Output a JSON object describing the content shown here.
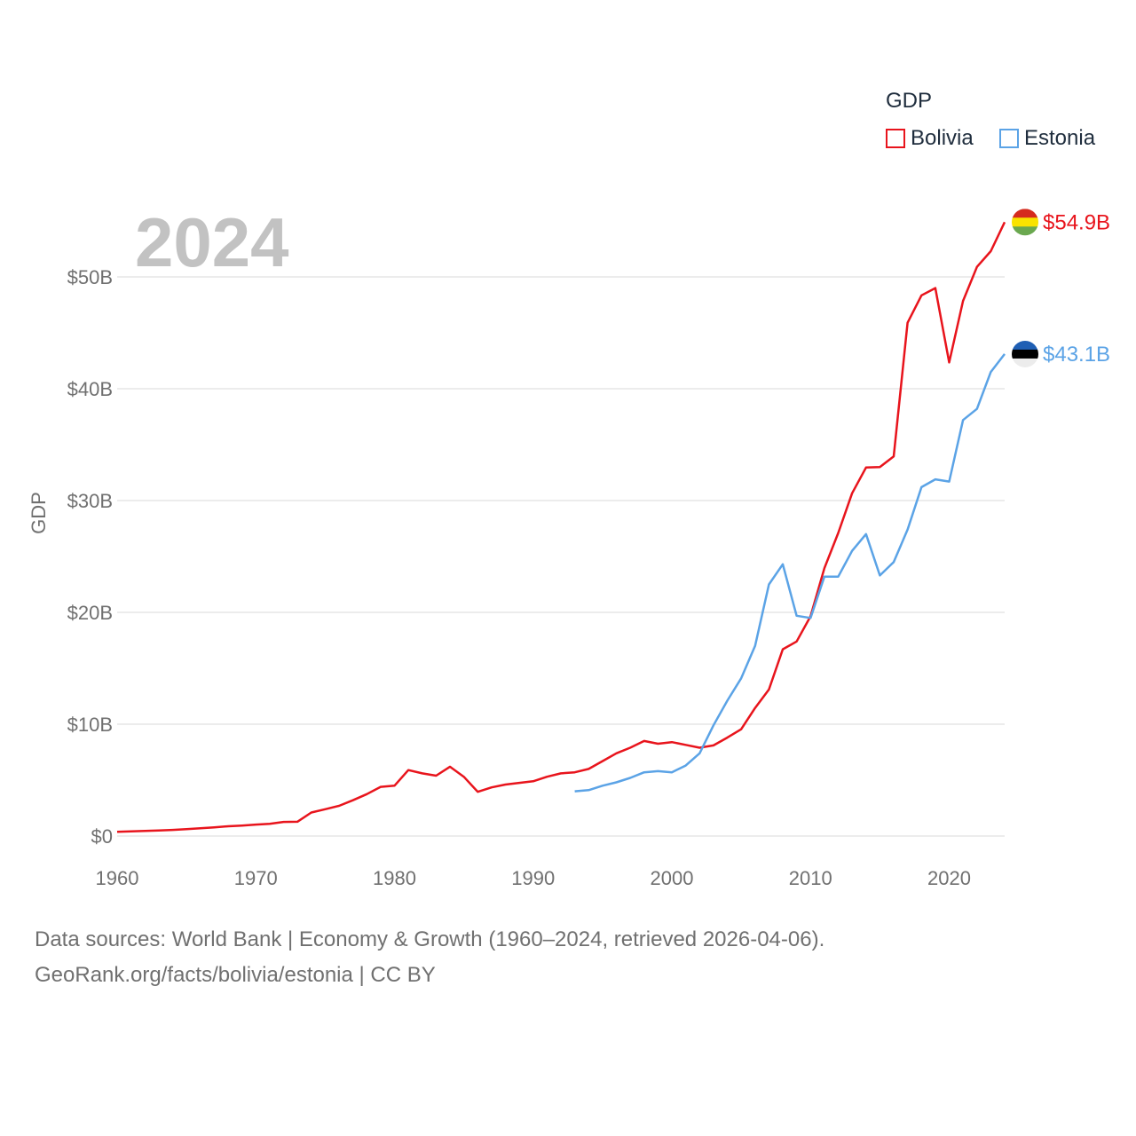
{
  "chart_data": {
    "type": "line",
    "title": "",
    "year_label": "2024",
    "ylabel": "GDP",
    "xlabel": "",
    "xlim": [
      1960,
      2024
    ],
    "ylim": [
      0,
      55
    ],
    "x_ticks": [
      "1960",
      "1970",
      "1980",
      "1990",
      "2000",
      "2010",
      "2020"
    ],
    "y_ticks": [
      "$0",
      "$10B",
      "$20B",
      "$30B",
      "$40B",
      "$50B"
    ],
    "legend": {
      "title": "GDP",
      "placement": "top-right"
    },
    "series": [
      {
        "name": "Bolivia",
        "color": "#e8141c",
        "end_label": "$54.9B",
        "flag": "bolivia-flag",
        "x": [
          1960,
          1961,
          1962,
          1963,
          1964,
          1965,
          1966,
          1967,
          1968,
          1969,
          1970,
          1971,
          1972,
          1973,
          1974,
          1975,
          1976,
          1977,
          1978,
          1979,
          1980,
          1981,
          1982,
          1983,
          1984,
          1985,
          1986,
          1987,
          1988,
          1989,
          1990,
          1991,
          1992,
          1993,
          1994,
          1995,
          1996,
          1997,
          1998,
          1999,
          2000,
          2001,
          2002,
          2003,
          2004,
          2005,
          2006,
          2007,
          2008,
          2009,
          2010,
          2011,
          2012,
          2013,
          2014,
          2015,
          2016,
          2017,
          2018,
          2019,
          2020,
          2021,
          2022,
          2023,
          2024
        ],
        "values": [
          0.37,
          0.41,
          0.46,
          0.49,
          0.55,
          0.62,
          0.69,
          0.77,
          0.87,
          0.94,
          1.02,
          1.09,
          1.26,
          1.28,
          2.1,
          2.4,
          2.7,
          3.2,
          3.75,
          4.4,
          4.5,
          5.9,
          5.6,
          5.4,
          6.2,
          5.3,
          3.95,
          4.35,
          4.6,
          4.75,
          4.9,
          5.3,
          5.6,
          5.7,
          6.0,
          6.7,
          7.4,
          7.9,
          8.5,
          8.25,
          8.4,
          8.15,
          7.9,
          8.1,
          8.8,
          9.55,
          11.45,
          13.1,
          16.7,
          17.4,
          19.65,
          23.95,
          27.1,
          30.65,
          32.95,
          33.0,
          33.95,
          45.9,
          48.35,
          49.0,
          42.35,
          47.85,
          50.9,
          52.3,
          54.9
        ]
      },
      {
        "name": "Estonia",
        "color": "#5ba3e6",
        "end_label": "$43.1B",
        "flag": "estonia-flag",
        "x": [
          1993,
          1994,
          1995,
          1996,
          1997,
          1998,
          1999,
          2000,
          2001,
          2002,
          2003,
          2004,
          2005,
          2006,
          2007,
          2008,
          2009,
          2010,
          2011,
          2012,
          2013,
          2014,
          2015,
          2016,
          2017,
          2018,
          2019,
          2020,
          2021,
          2022,
          2023,
          2024
        ],
        "values": [
          4.0,
          4.1,
          4.5,
          4.8,
          5.2,
          5.7,
          5.8,
          5.7,
          6.3,
          7.4,
          9.9,
          12.1,
          14.1,
          17.0,
          22.5,
          24.3,
          19.7,
          19.5,
          23.2,
          23.2,
          25.5,
          27.0,
          23.3,
          24.5,
          27.4,
          31.2,
          31.9,
          31.7,
          37.2,
          38.2,
          41.5,
          43.1
        ]
      }
    ]
  },
  "footer": {
    "line1": "Data sources: World Bank | Economy & Growth (1960–2024, retrieved 2026-04-06).",
    "line2": "GeoRank.org/facts/bolivia/estonia | CC BY"
  }
}
